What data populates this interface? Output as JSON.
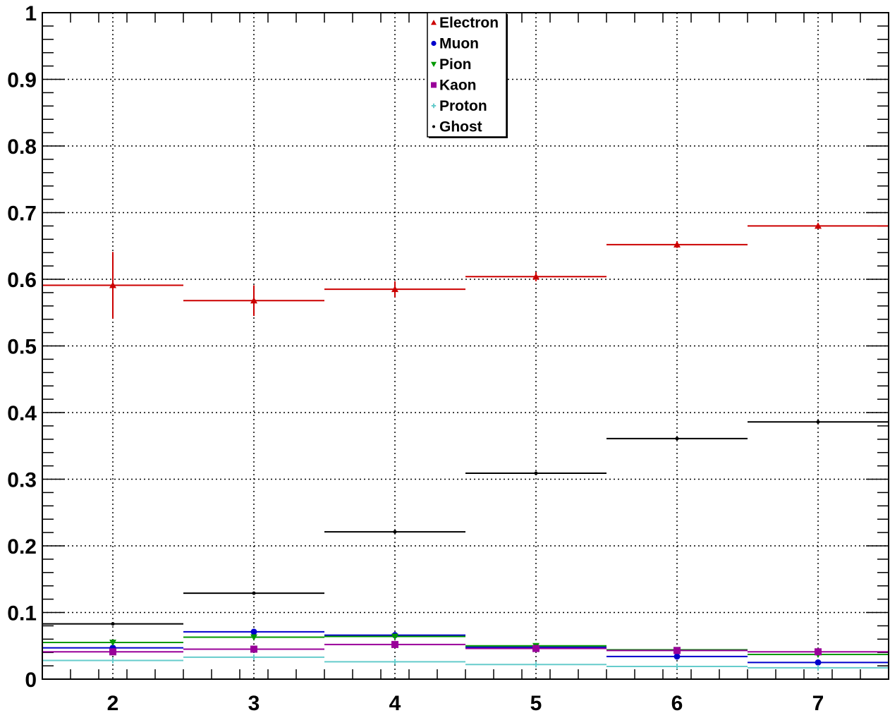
{
  "chart_data": {
    "type": "scatter",
    "title": "",
    "xlabel": "",
    "ylabel": "",
    "xlim": [
      1.5,
      7.5
    ],
    "ylim": [
      0,
      1
    ],
    "x_ticks": [
      2,
      3,
      4,
      5,
      6,
      7
    ],
    "y_ticks": [
      0,
      0.1,
      0.2,
      0.3,
      0.4,
      0.5,
      0.6,
      0.7,
      0.8,
      0.9,
      1
    ],
    "y_tick_labels": [
      "0",
      "0.1",
      "0.2",
      "0.3",
      "0.4",
      "0.5",
      "0.6",
      "0.7",
      "0.8",
      "0.9",
      "1"
    ],
    "grid": true,
    "legend_position": "top-center",
    "x": [
      2,
      3,
      4,
      5,
      6,
      7
    ],
    "bin_half_width": 0.5,
    "series": [
      {
        "name": "Electron",
        "color": "#cc0000",
        "marker": "triangle-up",
        "values": [
          0.591,
          0.568,
          0.585,
          0.604,
          0.652,
          0.68
        ],
        "errors": [
          0.05,
          0.023,
          0.012,
          0.007,
          0.005,
          0.004
        ]
      },
      {
        "name": "Muon",
        "color": "#0000cc",
        "marker": "circle",
        "values": [
          0.047,
          0.071,
          0.066,
          0.048,
          0.034,
          0.025
        ],
        "errors": [
          0,
          0,
          0,
          0,
          0,
          0
        ]
      },
      {
        "name": "Pion",
        "color": "#009900",
        "marker": "triangle-down",
        "values": [
          0.055,
          0.063,
          0.064,
          0.05,
          0.044,
          0.037
        ],
        "errors": [
          0,
          0,
          0,
          0,
          0,
          0
        ]
      },
      {
        "name": "Kaon",
        "color": "#990099",
        "marker": "square",
        "values": [
          0.041,
          0.045,
          0.052,
          0.046,
          0.043,
          0.041
        ],
        "errors": [
          0,
          0,
          0,
          0,
          0,
          0
        ]
      },
      {
        "name": "Proton",
        "color": "#66cccc",
        "marker": "cross",
        "values": [
          0.028,
          0.033,
          0.026,
          0.022,
          0.019,
          0.017
        ],
        "errors": [
          0,
          0,
          0,
          0,
          0,
          0
        ]
      },
      {
        "name": "Ghost",
        "color": "#000000",
        "marker": "dot",
        "values": [
          0.083,
          0.129,
          0.221,
          0.309,
          0.361,
          0.386
        ],
        "errors": [
          0,
          0,
          0,
          0,
          0,
          0
        ]
      }
    ]
  }
}
